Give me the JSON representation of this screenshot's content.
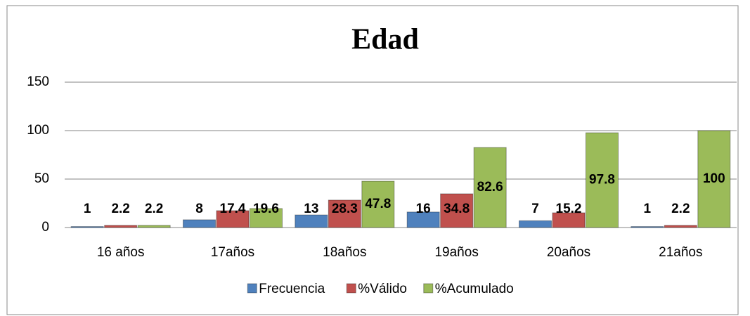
{
  "chart_data": {
    "type": "bar",
    "title": "Edad",
    "categories": [
      "16 años",
      "17años",
      "18años",
      "19años",
      "20años",
      "21años"
    ],
    "series": [
      {
        "name": "Frecuencia",
        "color": "#4f81bd",
        "values": [
          1,
          8,
          13,
          16,
          7,
          1
        ]
      },
      {
        "name": "%Válido",
        "color": "#c0504d",
        "values": [
          2.2,
          17.4,
          28.3,
          34.8,
          15.2,
          2.2
        ]
      },
      {
        "name": "%Acumulado",
        "color": "#9bbb59",
        "values": [
          2.2,
          19.6,
          47.8,
          82.6,
          97.8,
          100
        ]
      }
    ],
    "ylim": [
      0,
      150
    ],
    "yticks": [
      0,
      50,
      100,
      150
    ],
    "grid": true,
    "legend": "bottom"
  }
}
